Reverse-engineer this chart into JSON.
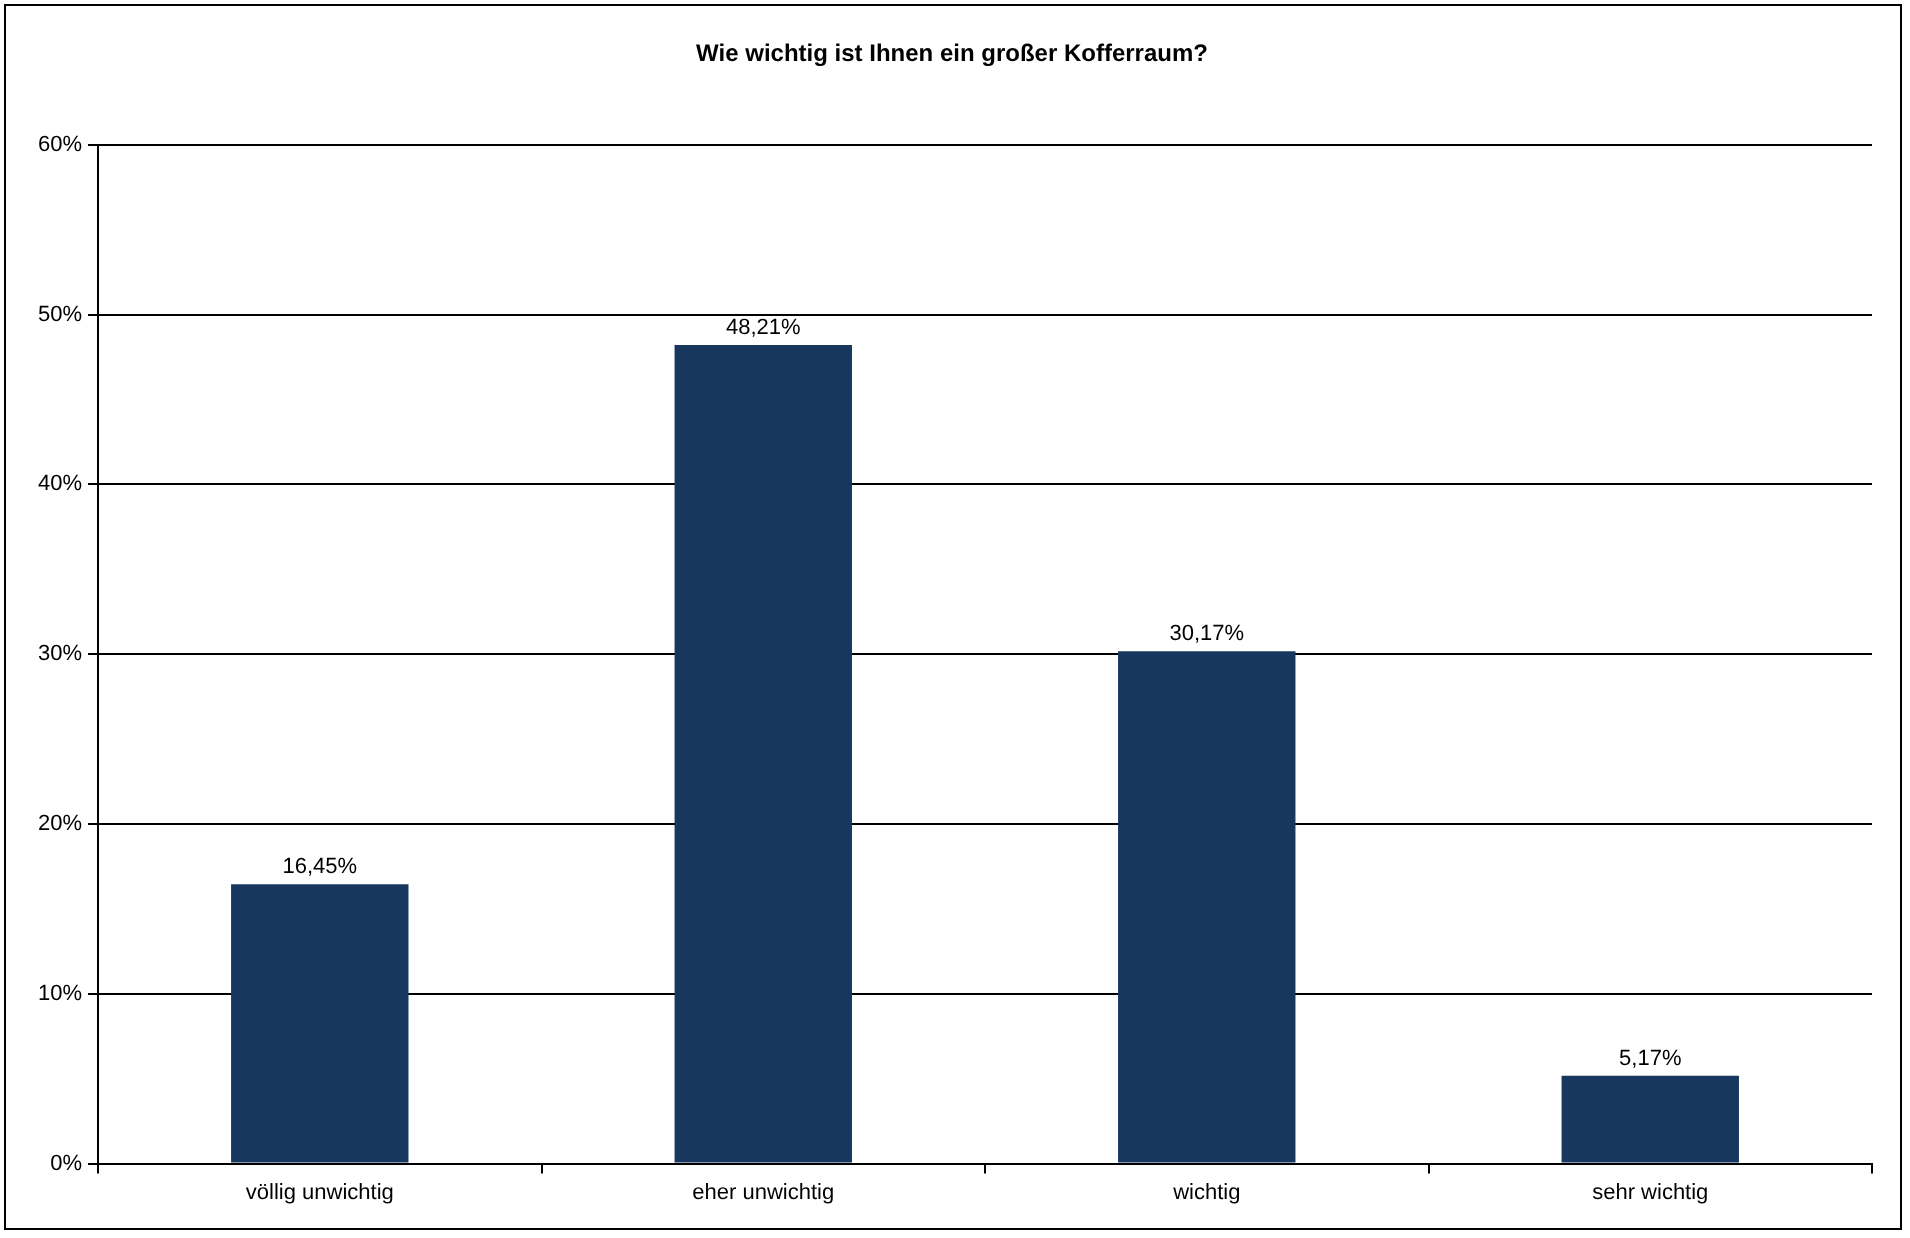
{
  "chart_data": {
    "type": "bar",
    "title": "Wie wichtig ist Ihnen ein großer Kofferraum?",
    "categories": [
      "völlig unwichtig",
      "eher unwichtig",
      "wichtig",
      "sehr wichtig"
    ],
    "values": [
      16.45,
      48.21,
      30.17,
      5.17
    ],
    "value_labels": [
      "16,45%",
      "48,21%",
      "30,17%",
      "5,17%"
    ],
    "color": "#17375e",
    "ylim": [
      0,
      60
    ],
    "yticks": [
      {
        "value": 0,
        "label": "0%"
      },
      {
        "value": 10,
        "label": "10%"
      },
      {
        "value": 20,
        "label": "20%"
      },
      {
        "value": 30,
        "label": "30%"
      },
      {
        "value": 40,
        "label": "40%"
      },
      {
        "value": 50,
        "label": "50%"
      },
      {
        "value": 60,
        "label": "60%"
      }
    ],
    "grid": "y",
    "legend": false
  }
}
